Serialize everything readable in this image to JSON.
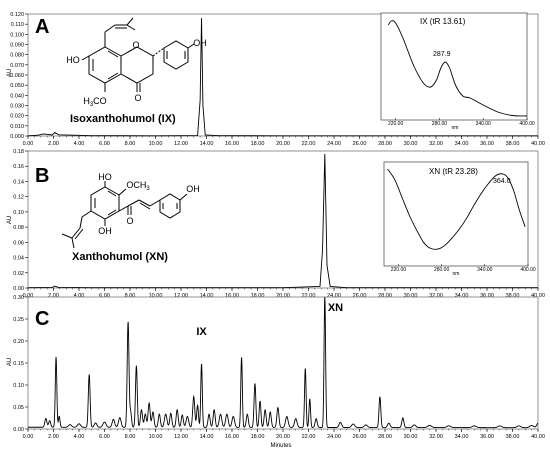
{
  "chart_data": [
    {
      "type": "line",
      "panel": "A",
      "compound_label": "Isoxanthohumol (IX)",
      "ylabel": "AU",
      "ylim": [
        0,
        0.12
      ],
      "yticks": [
        0.0,
        0.01,
        0.02,
        0.03,
        0.04,
        0.05,
        0.06,
        0.07,
        0.08,
        0.09,
        0.1,
        0.11,
        0.12
      ],
      "ytick_decimals": 3,
      "xlim": [
        0,
        40
      ],
      "xticks": [
        0,
        2,
        4,
        6,
        8,
        10,
        12,
        14,
        16,
        18,
        20,
        22,
        24,
        26,
        28,
        30,
        32,
        34,
        36,
        38,
        40
      ],
      "x": [
        0,
        0.8,
        1.2,
        1.9,
        2.1,
        2.4,
        5,
        10,
        13.3,
        13.5,
        13.61,
        13.72,
        13.9,
        15,
        20,
        25,
        30,
        35,
        40
      ],
      "y": [
        0.0002,
        0.0008,
        0.002,
        0.001,
        0.0035,
        0.0012,
        0.0003,
        0.0002,
        0.0004,
        0.035,
        0.116,
        0.03,
        0.001,
        0.0003,
        0.0002,
        0.0002,
        0.0002,
        0.0002,
        0.0002
      ],
      "inset": {
        "type": "line",
        "title": "IX (tR 13.61)",
        "annotation": "287.9",
        "xlabel": "nm",
        "xlim": [
          200,
          400
        ],
        "xtick_labels": [
          "220.00",
          "280.00",
          "340.00",
          "400.00"
        ],
        "xtick_values": [
          220,
          280,
          340,
          400
        ],
        "ylim": [
          0,
          1
        ],
        "x": [
          210,
          214,
          220,
          230,
          245,
          258,
          268,
          276,
          282,
          287.9,
          294,
          302,
          312,
          322,
          340,
          360,
          380,
          400
        ],
        "y": [
          0.93,
          0.97,
          0.95,
          0.8,
          0.52,
          0.35,
          0.31,
          0.38,
          0.5,
          0.56,
          0.5,
          0.33,
          0.22,
          0.2,
          0.13,
          0.06,
          0.025,
          0.02
        ]
      }
    },
    {
      "type": "line",
      "panel": "B",
      "compound_label": "Xanthohumol (XN)",
      "ylabel": "AU",
      "ylim": [
        0,
        0.18
      ],
      "yticks": [
        0.0,
        0.02,
        0.04,
        0.06,
        0.08,
        0.1,
        0.12,
        0.14,
        0.16,
        0.18
      ],
      "ytick_decimals": 2,
      "xlim": [
        0,
        40
      ],
      "xticks": [
        0,
        2,
        4,
        6,
        8,
        10,
        12,
        14,
        16,
        18,
        20,
        22,
        24,
        26,
        28,
        30,
        32,
        34,
        36,
        38,
        40
      ],
      "x": [
        0,
        1.9,
        2.1,
        2.4,
        5,
        10,
        15,
        20,
        22.9,
        23.1,
        23.28,
        23.45,
        23.7,
        25,
        30,
        35,
        40
      ],
      "y": [
        0.0004,
        0.0008,
        0.0025,
        0.0008,
        0.0004,
        0.0004,
        0.0004,
        0.0004,
        0.002,
        0.05,
        0.176,
        0.03,
        0.002,
        0.0004,
        0.0004,
        0.0004,
        0.0004
      ],
      "inset": {
        "type": "line",
        "title": "XN (tR 23.28)",
        "annotation": "364.0",
        "xlabel": "nm",
        "xlim": [
          200,
          400
        ],
        "xtick_labels": [
          "220.00",
          "280.00",
          "340.00",
          "400.00"
        ],
        "xtick_values": [
          220,
          280,
          340,
          400
        ],
        "ylim": [
          0,
          1
        ],
        "x": [
          205,
          215,
          225,
          235,
          245,
          255,
          262,
          270,
          278,
          286,
          295,
          305,
          315,
          325,
          335,
          345,
          355,
          364,
          372,
          380,
          388,
          396
        ],
        "y": [
          0.97,
          0.86,
          0.68,
          0.5,
          0.35,
          0.22,
          0.17,
          0.15,
          0.16,
          0.2,
          0.27,
          0.36,
          0.47,
          0.6,
          0.72,
          0.82,
          0.9,
          0.92,
          0.88,
          0.75,
          0.55,
          0.38
        ]
      }
    },
    {
      "type": "line",
      "panel": "C",
      "xlabel": "Minutes",
      "ylabel": "AU",
      "ylim": [
        0,
        0.3
      ],
      "yticks": [
        0.0,
        0.05,
        0.1,
        0.15,
        0.2,
        0.25,
        0.3
      ],
      "ytick_decimals": 2,
      "xlim": [
        0,
        40
      ],
      "xticks": [
        0,
        2,
        4,
        6,
        8,
        10,
        12,
        14,
        16,
        18,
        20,
        22,
        24,
        26,
        28,
        30,
        32,
        34,
        36,
        38,
        40
      ],
      "peak_labels": [
        {
          "text": "IX",
          "x": 13.61,
          "y": 0.2
        },
        {
          "text": "XN",
          "x": 23.28,
          "y": 0.3
        }
      ],
      "baseline": 0.004,
      "peaks": [
        [
          1.4,
          0.02,
          0.08
        ],
        [
          1.7,
          0.015,
          0.08
        ],
        [
          2.2,
          0.16,
          0.06
        ],
        [
          2.45,
          0.025,
          0.06
        ],
        [
          3.3,
          0.006,
          0.12
        ],
        [
          4.0,
          0.008,
          0.12
        ],
        [
          4.8,
          0.12,
          0.07
        ],
        [
          5.3,
          0.01,
          0.1
        ],
        [
          6.0,
          0.012,
          0.12
        ],
        [
          6.7,
          0.018,
          0.1
        ],
        [
          7.2,
          0.022,
          0.1
        ],
        [
          7.85,
          0.24,
          0.07
        ],
        [
          8.05,
          0.035,
          0.07
        ],
        [
          8.5,
          0.14,
          0.07
        ],
        [
          8.9,
          0.04,
          0.08
        ],
        [
          9.2,
          0.03,
          0.08
        ],
        [
          9.5,
          0.055,
          0.08
        ],
        [
          9.8,
          0.035,
          0.08
        ],
        [
          10.3,
          0.03,
          0.08
        ],
        [
          10.8,
          0.03,
          0.1
        ],
        [
          11.2,
          0.032,
          0.08
        ],
        [
          11.7,
          0.04,
          0.08
        ],
        [
          12.1,
          0.028,
          0.08
        ],
        [
          12.5,
          0.025,
          0.1
        ],
        [
          13.0,
          0.07,
          0.08
        ],
        [
          13.3,
          0.05,
          0.07
        ],
        [
          13.61,
          0.145,
          0.06
        ],
        [
          14.2,
          0.03,
          0.08
        ],
        [
          14.6,
          0.04,
          0.08
        ],
        [
          15.1,
          0.03,
          0.1
        ],
        [
          15.6,
          0.03,
          0.1
        ],
        [
          16.1,
          0.025,
          0.1
        ],
        [
          16.75,
          0.16,
          0.06
        ],
        [
          17.2,
          0.03,
          0.08
        ],
        [
          17.8,
          0.1,
          0.07
        ],
        [
          18.2,
          0.06,
          0.07
        ],
        [
          18.6,
          0.04,
          0.08
        ],
        [
          19.0,
          0.035,
          0.08
        ],
        [
          19.6,
          0.045,
          0.08
        ],
        [
          20.3,
          0.025,
          0.1
        ],
        [
          21.0,
          0.02,
          0.1
        ],
        [
          21.75,
          0.135,
          0.06
        ],
        [
          22.1,
          0.065,
          0.06
        ],
        [
          22.6,
          0.02,
          0.08
        ],
        [
          23.28,
          0.3,
          0.06
        ],
        [
          24.5,
          0.012,
          0.1
        ],
        [
          25.5,
          0.008,
          0.12
        ],
        [
          26.5,
          0.006,
          0.12
        ],
        [
          27.6,
          0.07,
          0.07
        ],
        [
          28.3,
          0.01,
          0.1
        ],
        [
          29.4,
          0.022,
          0.08
        ],
        [
          30.3,
          0.006,
          0.12
        ],
        [
          31.5,
          0.005,
          0.15
        ],
        [
          33.0,
          0.004,
          0.15
        ],
        [
          35.0,
          0.004,
          0.15
        ],
        [
          37.0,
          0.004,
          0.15
        ],
        [
          38.5,
          0.004,
          0.15
        ],
        [
          39.5,
          0.005,
          0.15
        ],
        [
          40.0,
          0.01,
          0.1
        ]
      ]
    }
  ]
}
